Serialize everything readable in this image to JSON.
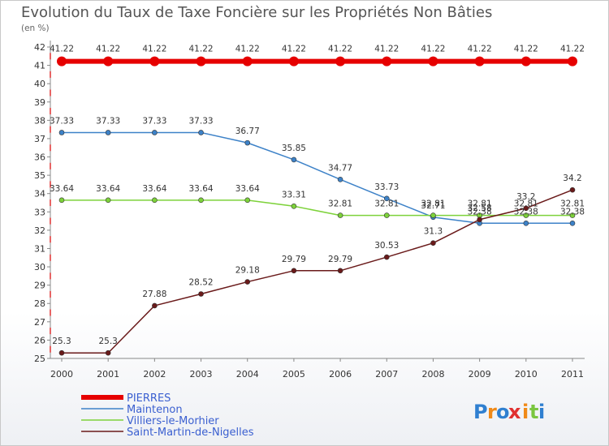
{
  "chart_data": {
    "type": "line",
    "title": "Evolution du Taux de Taxe Foncière sur les Propriétés Non Bâties",
    "subtitle": "(en %)",
    "xlabel": "",
    "ylabel": "",
    "ylim": [
      25,
      42
    ],
    "grid": false,
    "categories": [
      "2000",
      "2001",
      "2002",
      "2003",
      "2004",
      "2005",
      "2006",
      "2007",
      "2008",
      "2009",
      "2010",
      "2011"
    ],
    "yticks": [
      "25",
      "26",
      "27",
      "28",
      "29",
      "30",
      "31",
      "32",
      "33",
      "34",
      "35",
      "36",
      "37",
      "38",
      "39",
      "40",
      "41",
      "42"
    ],
    "series": [
      {
        "name": "PIERRES",
        "color": "#e60000",
        "values": [
          41.22,
          41.22,
          41.22,
          41.22,
          41.22,
          41.22,
          41.22,
          41.22,
          41.22,
          41.22,
          41.22,
          41.22
        ],
        "labels": [
          "41.22",
          "41.22",
          "41.22",
          "41.22",
          "41.22",
          "41.22",
          "41.22",
          "41.22",
          "41.22",
          "41.22",
          "41.22",
          "41.22"
        ]
      },
      {
        "name": "Maintenon",
        "color": "#3d82c8",
        "values": [
          37.33,
          37.33,
          37.33,
          37.33,
          36.77,
          35.85,
          34.77,
          33.73,
          32.71,
          32.38,
          32.38,
          32.38
        ],
        "labels": [
          "37.33",
          "37.33",
          "37.33",
          "37.33",
          "36.77",
          "35.85",
          "34.77",
          "33.73",
          "32.71",
          "32.38",
          "32.38",
          "32.38"
        ]
      },
      {
        "name": "Villiers-le-Morhier",
        "color": "#7dd23a",
        "values": [
          33.64,
          33.64,
          33.64,
          33.64,
          33.64,
          33.31,
          32.81,
          32.81,
          32.81,
          32.81,
          32.81,
          32.81
        ],
        "labels": [
          "33.64",
          "33.64",
          "33.64",
          "33.64",
          "33.64",
          "33.31",
          "32.81",
          "32.81",
          "32.81",
          "32.81",
          "32.81",
          "32.81"
        ]
      },
      {
        "name": "Saint-Martin-de-Nigelles",
        "color": "#6a1a1a",
        "values": [
          25.3,
          25.3,
          27.88,
          28.52,
          29.18,
          29.79,
          29.79,
          30.53,
          31.3,
          32.58,
          33.2,
          34.2
        ],
        "labels": [
          "25.3",
          "25.3",
          "27.88",
          "28.52",
          "29.18",
          "29.79",
          "29.79",
          "30.53",
          "31.3",
          "32.58",
          "33.2",
          "34.2"
        ]
      }
    ]
  },
  "brand": {
    "letters": [
      "P",
      "r",
      "o",
      "x",
      "i",
      "t",
      "i"
    ],
    "colors": [
      "#2f7fd0",
      "#f08a18",
      "#2f7fd0",
      "#e03030",
      "#f08a18",
      "#7bc640",
      "#2f7fd0"
    ]
  }
}
